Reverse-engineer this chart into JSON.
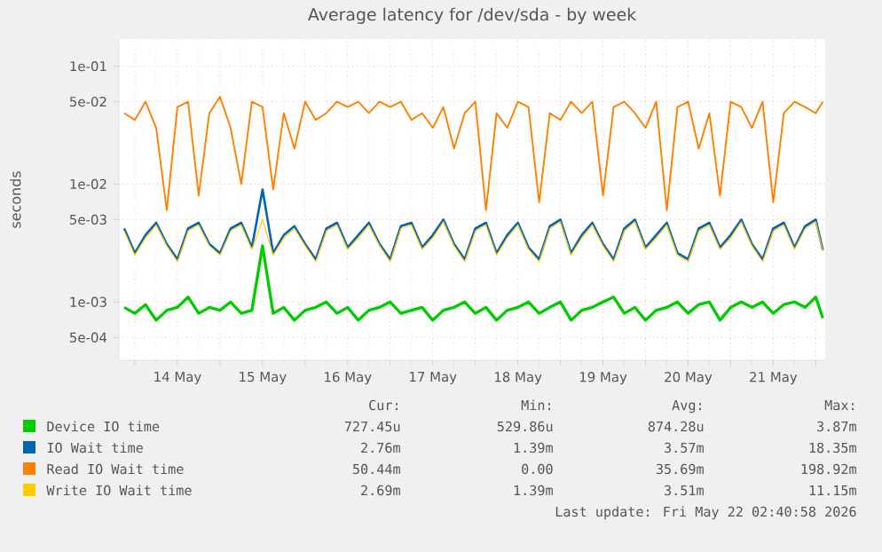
{
  "chart_data": {
    "type": "line",
    "title": "Average latency for /dev/sda - by week",
    "ylabel": "seconds",
    "log": "y",
    "grid": true,
    "legend": "bottom",
    "marker": "none",
    "xlim": [
      "2026-05-13T19:30",
      "2026-05-22T02:40"
    ],
    "ylim": [
      0.00032,
      0.17
    ],
    "yticks": [
      {
        "value": 0.1,
        "label": "1e-01"
      },
      {
        "value": 0.05,
        "label": "5e-02"
      },
      {
        "value": 0.01,
        "label": "1e-02"
      },
      {
        "value": 0.005,
        "label": "5e-03"
      },
      {
        "value": 0.001,
        "label": "1e-03"
      },
      {
        "value": 0.0005,
        "label": "5e-04"
      }
    ],
    "xticks": [
      {
        "value": "2026-05-14T00:00",
        "label": null
      },
      {
        "value": "2026-05-14T12:00",
        "label": "14 May"
      },
      {
        "value": "2026-05-15T00:00",
        "label": null
      },
      {
        "value": "2026-05-15T12:00",
        "label": "15 May"
      },
      {
        "value": "2026-05-16T00:00",
        "label": null
      },
      {
        "value": "2026-05-16T12:00",
        "label": "16 May"
      },
      {
        "value": "2026-05-17T00:00",
        "label": null
      },
      {
        "value": "2026-05-17T12:00",
        "label": "17 May"
      },
      {
        "value": "2026-05-18T00:00",
        "label": null
      },
      {
        "value": "2026-05-18T12:00",
        "label": "18 May"
      },
      {
        "value": "2026-05-19T00:00",
        "label": null
      },
      {
        "value": "2026-05-19T12:00",
        "label": "19 May"
      },
      {
        "value": "2026-05-20T00:00",
        "label": null
      },
      {
        "value": "2026-05-20T12:00",
        "label": "20 May"
      },
      {
        "value": "2026-05-21T00:00",
        "label": null
      },
      {
        "value": "2026-05-21T12:00",
        "label": "21 May"
      },
      {
        "value": "2026-05-22T00:00",
        "label": null
      }
    ],
    "x": [
      "2026-05-13T21:00",
      "2026-05-14T00:00",
      "2026-05-14T03:00",
      "2026-05-14T06:00",
      "2026-05-14T09:00",
      "2026-05-14T12:00",
      "2026-05-14T15:00",
      "2026-05-14T18:00",
      "2026-05-14T21:00",
      "2026-05-15T00:00",
      "2026-05-15T03:00",
      "2026-05-15T06:00",
      "2026-05-15T09:00",
      "2026-05-15T12:00",
      "2026-05-15T15:00",
      "2026-05-15T18:00",
      "2026-05-15T21:00",
      "2026-05-16T00:00",
      "2026-05-16T03:00",
      "2026-05-16T06:00",
      "2026-05-16T09:00",
      "2026-05-16T12:00",
      "2026-05-16T15:00",
      "2026-05-16T18:00",
      "2026-05-16T21:00",
      "2026-05-17T00:00",
      "2026-05-17T03:00",
      "2026-05-17T06:00",
      "2026-05-17T09:00",
      "2026-05-17T12:00",
      "2026-05-17T15:00",
      "2026-05-17T18:00",
      "2026-05-17T21:00",
      "2026-05-18T00:00",
      "2026-05-18T03:00",
      "2026-05-18T06:00",
      "2026-05-18T09:00",
      "2026-05-18T12:00",
      "2026-05-18T15:00",
      "2026-05-18T18:00",
      "2026-05-18T21:00",
      "2026-05-19T00:00",
      "2026-05-19T03:00",
      "2026-05-19T06:00",
      "2026-05-19T09:00",
      "2026-05-19T12:00",
      "2026-05-19T15:00",
      "2026-05-19T18:00",
      "2026-05-19T21:00",
      "2026-05-20T00:00",
      "2026-05-20T03:00",
      "2026-05-20T06:00",
      "2026-05-20T09:00",
      "2026-05-20T12:00",
      "2026-05-20T15:00",
      "2026-05-20T18:00",
      "2026-05-20T21:00",
      "2026-05-21T00:00",
      "2026-05-21T03:00",
      "2026-05-21T06:00",
      "2026-05-21T09:00",
      "2026-05-21T12:00",
      "2026-05-21T15:00",
      "2026-05-21T18:00",
      "2026-05-21T21:00",
      "2026-05-22T00:00",
      "2026-05-22T02:00"
    ],
    "series": [
      {
        "name": "Device IO time",
        "color": "#00cc00",
        "values": [
          0.0009,
          0.0008,
          0.00095,
          0.0007,
          0.00085,
          0.0009,
          0.0011,
          0.0008,
          0.0009,
          0.00085,
          0.001,
          0.0008,
          0.00085,
          0.003,
          0.0008,
          0.0009,
          0.0007,
          0.00085,
          0.0009,
          0.001,
          0.0008,
          0.0009,
          0.0007,
          0.00085,
          0.0009,
          0.001,
          0.0008,
          0.00085,
          0.0009,
          0.0007,
          0.00085,
          0.0009,
          0.001,
          0.0008,
          0.0009,
          0.0007,
          0.00085,
          0.0009,
          0.001,
          0.0008,
          0.0009,
          0.001,
          0.0007,
          0.00085,
          0.0009,
          0.001,
          0.0011,
          0.0008,
          0.0009,
          0.0007,
          0.00085,
          0.0009,
          0.001,
          0.0008,
          0.00095,
          0.001,
          0.0007,
          0.0009,
          0.001,
          0.0009,
          0.001,
          0.0008,
          0.00095,
          0.001,
          0.0009,
          0.0011,
          0.00073
        ]
      },
      {
        "name": "IO Wait time",
        "color": "#0066b3",
        "values": [
          0.0042,
          0.0026,
          0.0037,
          0.0047,
          0.0031,
          0.0023,
          0.0042,
          0.0047,
          0.0031,
          0.0026,
          0.0042,
          0.0047,
          0.0029,
          0.009,
          0.0026,
          0.0037,
          0.0044,
          0.0031,
          0.0023,
          0.0042,
          0.0047,
          0.0029,
          0.0037,
          0.0047,
          0.0031,
          0.0023,
          0.0044,
          0.0047,
          0.0029,
          0.0037,
          0.005,
          0.0031,
          0.0023,
          0.0042,
          0.0047,
          0.0026,
          0.0037,
          0.0047,
          0.0029,
          0.0023,
          0.0044,
          0.005,
          0.0026,
          0.0037,
          0.0047,
          0.0031,
          0.0023,
          0.0042,
          0.005,
          0.0029,
          0.0037,
          0.0047,
          0.0026,
          0.0023,
          0.0042,
          0.0047,
          0.0029,
          0.0037,
          0.005,
          0.0031,
          0.0023,
          0.0042,
          0.0047,
          0.0029,
          0.0044,
          0.005,
          0.00276
        ]
      },
      {
        "name": "Read IO Wait time",
        "color": "#ff8000",
        "values": [
          0.04,
          0.035,
          0.05,
          0.03,
          0.006,
          0.045,
          0.05,
          0.008,
          0.04,
          0.055,
          0.03,
          0.01,
          0.05,
          0.045,
          0.009,
          0.04,
          0.02,
          0.05,
          0.035,
          0.04,
          0.05,
          0.045,
          0.05,
          0.04,
          0.05,
          0.045,
          0.05,
          0.035,
          0.04,
          0.03,
          0.045,
          0.02,
          0.04,
          0.05,
          0.006,
          0.04,
          0.03,
          0.05,
          0.045,
          0.007,
          0.04,
          0.035,
          0.05,
          0.04,
          0.05,
          0.008,
          0.045,
          0.05,
          0.04,
          0.03,
          0.05,
          0.006,
          0.045,
          0.05,
          0.02,
          0.04,
          0.008,
          0.05,
          0.045,
          0.03,
          0.05,
          0.007,
          0.04,
          0.05,
          0.045,
          0.04,
          0.05
        ]
      },
      {
        "name": "Write IO Wait time",
        "color": "#ffcc00",
        "values": [
          0.004,
          0.0025,
          0.0035,
          0.0045,
          0.003,
          0.0022,
          0.004,
          0.0045,
          0.003,
          0.0025,
          0.004,
          0.0045,
          0.0028,
          0.005,
          0.0025,
          0.0035,
          0.0042,
          0.003,
          0.0022,
          0.004,
          0.0045,
          0.0028,
          0.0035,
          0.0045,
          0.003,
          0.0022,
          0.0042,
          0.0045,
          0.0028,
          0.0035,
          0.0048,
          0.003,
          0.0022,
          0.004,
          0.0045,
          0.0025,
          0.0035,
          0.0045,
          0.0028,
          0.0022,
          0.0042,
          0.0048,
          0.0025,
          0.0035,
          0.0045,
          0.003,
          0.0022,
          0.004,
          0.0048,
          0.0028,
          0.0035,
          0.0045,
          0.0025,
          0.0022,
          0.004,
          0.0045,
          0.0028,
          0.0035,
          0.0048,
          0.003,
          0.0022,
          0.004,
          0.0045,
          0.0028,
          0.0042,
          0.0048,
          0.0027
        ]
      }
    ],
    "annotations": [
      "Cur:",
      "Min:",
      "Avg:",
      "Max:",
      "727.45u",
      "529.86u",
      "874.28u",
      "3.87m",
      "2.76m",
      "1.39m",
      "3.57m",
      "18.35m",
      "50.44m",
      "0.00",
      "35.69m",
      "198.92m",
      "2.69m",
      "1.39m",
      "3.51m",
      "11.15m",
      "Last update: Fri May 22 02:40:58 2026"
    ]
  }
}
